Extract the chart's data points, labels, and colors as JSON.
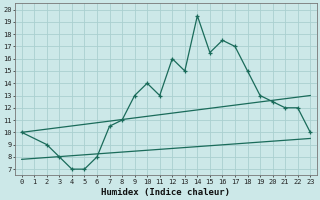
{
  "title": "",
  "xlabel": "Humidex (Indice chaleur)",
  "bg_color": "#cce8e8",
  "grid_color": "#aad0d0",
  "line_color": "#1a6b5a",
  "xlim": [
    -0.5,
    23.5
  ],
  "ylim": [
    6.5,
    20.5
  ],
  "yticks": [
    7,
    8,
    9,
    10,
    11,
    12,
    13,
    14,
    15,
    16,
    17,
    18,
    19,
    20
  ],
  "xticks": [
    0,
    1,
    2,
    3,
    4,
    5,
    6,
    7,
    8,
    9,
    10,
    11,
    12,
    13,
    14,
    15,
    16,
    17,
    18,
    19,
    20,
    21,
    22,
    23
  ],
  "main_x": [
    0,
    2,
    3,
    4,
    5,
    6,
    7,
    8,
    9,
    10,
    11,
    12,
    13,
    14,
    15,
    16,
    17,
    18,
    19,
    20,
    21,
    22,
    23
  ],
  "main_y": [
    10,
    9,
    8,
    7,
    7,
    8,
    10.5,
    11,
    13,
    14,
    13,
    16,
    15,
    19.5,
    16.5,
    17.5,
    17,
    15,
    13,
    12.5,
    12,
    12,
    10
  ],
  "line2_x": [
    0,
    23
  ],
  "line2_y": [
    10.0,
    13.0
  ],
  "line3_x": [
    0,
    23
  ],
  "line3_y": [
    7.8,
    9.5
  ],
  "tick_fontsize": 5.0,
  "xlabel_fontsize": 6.5
}
